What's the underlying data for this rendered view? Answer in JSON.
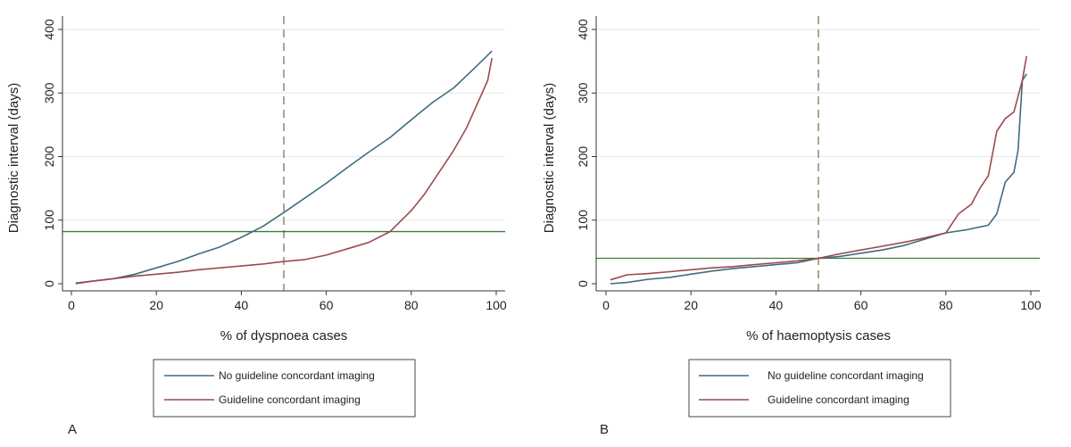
{
  "panels": [
    {
      "panel_label": "A",
      "legend": [
        {
          "label": "No guideline concordant imaging",
          "color": "#3e6d80"
        },
        {
          "label": "Guideline concordant imaging",
          "color": "#9b4a4e"
        }
      ]
    },
    {
      "panel_label": "B",
      "legend": [
        {
          "label": "No guideline concordant imaging",
          "color": "#3e6d80"
        },
        {
          "label": "Guideline concordant imaging",
          "color": "#9b4a4e"
        }
      ]
    }
  ],
  "chart_data": [
    {
      "type": "line",
      "title": "",
      "xlabel": "% of dyspnoea cases",
      "ylabel": "Diagnostic interval (days)",
      "xlim": [
        0,
        100
      ],
      "ylim": [
        0,
        400
      ],
      "xticks": [
        0,
        20,
        40,
        60,
        80,
        100
      ],
      "yticks": [
        0,
        100,
        200,
        300,
        400
      ],
      "grid": "horizontal",
      "legend_position": "below",
      "reference_lines": [
        {
          "orientation": "vertical",
          "value": 50,
          "color": "#7a7a52",
          "style": "dashed"
        },
        {
          "orientation": "horizontal",
          "value": 82,
          "color": "#3f7a3a",
          "style": "solid"
        }
      ],
      "series": [
        {
          "name": "No guideline concordant imaging",
          "color": "#3e6d80",
          "x": [
            1,
            5,
            10,
            15,
            20,
            25,
            30,
            35,
            40,
            45,
            50,
            55,
            60,
            65,
            70,
            75,
            80,
            85,
            90,
            95,
            99
          ],
          "y": [
            1,
            4,
            8,
            15,
            25,
            35,
            47,
            58,
            73,
            90,
            112,
            135,
            158,
            183,
            207,
            230,
            258,
            285,
            308,
            340,
            366
          ]
        },
        {
          "name": "Guideline concordant imaging",
          "color": "#9b4a4e",
          "x": [
            1,
            5,
            10,
            15,
            20,
            25,
            30,
            35,
            40,
            45,
            50,
            55,
            60,
            65,
            70,
            75,
            80,
            83,
            86,
            90,
            93,
            96,
            98,
            99
          ],
          "y": [
            0,
            4,
            8,
            12,
            15,
            18,
            22,
            25,
            28,
            31,
            35,
            38,
            45,
            55,
            65,
            82,
            115,
            140,
            170,
            210,
            245,
            290,
            320,
            355
          ]
        }
      ]
    },
    {
      "type": "line",
      "title": "",
      "xlabel": "% of haemoptysis cases",
      "ylabel": "Diagnostic interval (days)",
      "xlim": [
        0,
        100
      ],
      "ylim": [
        0,
        400
      ],
      "xticks": [
        0,
        20,
        40,
        60,
        80,
        100
      ],
      "yticks": [
        0,
        100,
        200,
        300,
        400
      ],
      "grid": "horizontal",
      "legend_position": "below",
      "reference_lines": [
        {
          "orientation": "vertical",
          "value": 50,
          "color": "#7a7a52",
          "style": "dashed"
        },
        {
          "orientation": "horizontal",
          "value": 40,
          "color": "#3f7a3a",
          "style": "solid"
        }
      ],
      "series": [
        {
          "name": "No guideline concordant imaging",
          "color": "#3e6d80",
          "x": [
            1,
            5,
            10,
            15,
            20,
            25,
            30,
            35,
            40,
            45,
            50,
            55,
            60,
            65,
            70,
            75,
            80,
            85,
            90,
            92,
            94,
            96,
            97,
            98,
            99
          ],
          "y": [
            0,
            2,
            7,
            10,
            15,
            20,
            24,
            27,
            30,
            33,
            40,
            43,
            48,
            53,
            60,
            70,
            80,
            85,
            92,
            110,
            160,
            175,
            210,
            320,
            330
          ]
        },
        {
          "name": "Guideline concordant imaging",
          "color": "#9b4a4e",
          "x": [
            1,
            5,
            10,
            15,
            20,
            25,
            30,
            35,
            40,
            45,
            50,
            55,
            60,
            65,
            70,
            75,
            80,
            83,
            86,
            88,
            90,
            92,
            94,
            96,
            98,
            99
          ],
          "y": [
            6,
            14,
            16,
            19,
            22,
            25,
            27,
            30,
            33,
            36,
            40,
            47,
            53,
            59,
            65,
            72,
            80,
            110,
            125,
            150,
            170,
            240,
            260,
            270,
            320,
            358
          ]
        }
      ]
    }
  ]
}
